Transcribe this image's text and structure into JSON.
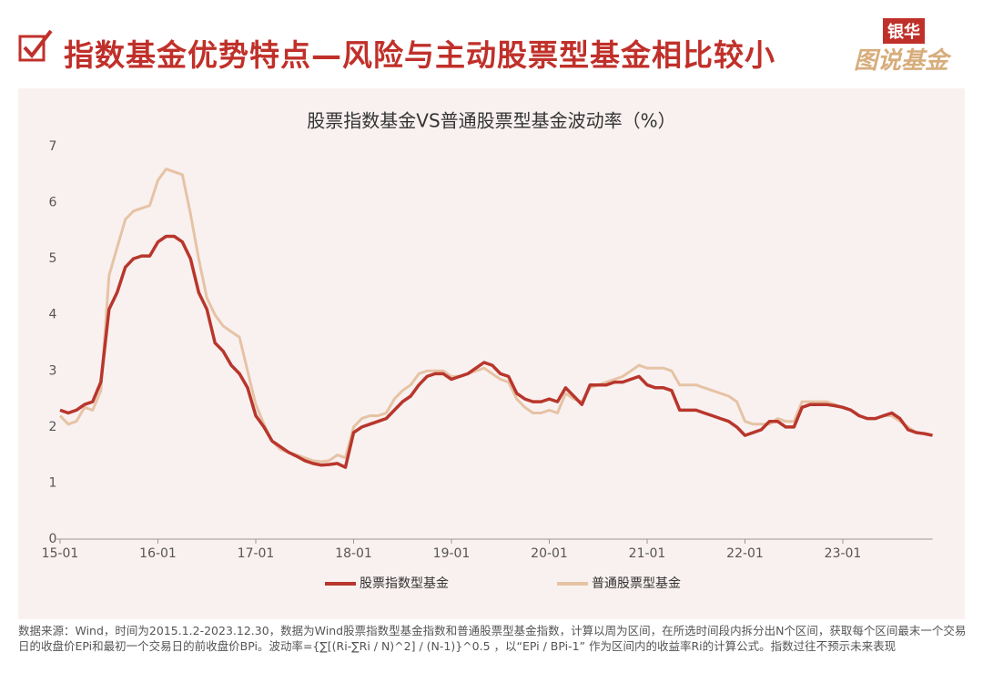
{
  "header": {
    "title": "指数基金优势特点—风险与主动股票型基金相比较小",
    "logo_top": "银华",
    "logo_bottom": "图说基金"
  },
  "chart_data": {
    "type": "line",
    "title": "股票指数基金VS普通股票型基金波动率（%）",
    "x": [
      "15-01",
      "15-02",
      "15-03",
      "15-04",
      "15-05",
      "15-06",
      "15-07",
      "15-08",
      "15-09",
      "15-10",
      "15-11",
      "15-12",
      "16-01",
      "16-02",
      "16-03",
      "16-04",
      "16-05",
      "16-06",
      "16-07",
      "16-08",
      "16-09",
      "16-10",
      "16-11",
      "16-12",
      "17-01",
      "17-02",
      "17-03",
      "17-04",
      "17-05",
      "17-06",
      "17-07",
      "17-08",
      "17-09",
      "17-10",
      "17-11",
      "17-12",
      "18-01",
      "18-02",
      "18-03",
      "18-04",
      "18-05",
      "18-06",
      "18-07",
      "18-08",
      "18-09",
      "18-10",
      "18-11",
      "18-12",
      "19-01",
      "19-02",
      "19-03",
      "19-04",
      "19-05",
      "19-06",
      "19-07",
      "19-08",
      "19-09",
      "19-10",
      "19-11",
      "19-12",
      "20-01",
      "20-02",
      "20-03",
      "20-04",
      "20-05",
      "20-06",
      "20-07",
      "20-08",
      "20-09",
      "20-10",
      "20-11",
      "20-12",
      "21-01",
      "21-02",
      "21-03",
      "21-04",
      "21-05",
      "21-06",
      "21-07",
      "21-08",
      "21-09",
      "21-10",
      "21-11",
      "21-12",
      "22-01",
      "22-02",
      "22-03",
      "22-04",
      "22-05",
      "22-06",
      "22-07",
      "22-08",
      "22-09",
      "22-10",
      "22-11",
      "22-12",
      "23-01",
      "23-02",
      "23-03",
      "23-04",
      "23-05",
      "23-06",
      "23-07",
      "23-08",
      "23-09",
      "23-10",
      "23-11",
      "23-12"
    ],
    "series": [
      {
        "name": "股票指数型基金",
        "color": "#b8362c",
        "values": [
          2.3,
          2.25,
          2.3,
          2.4,
          2.45,
          2.8,
          4.1,
          4.4,
          4.85,
          5.0,
          5.05,
          5.05,
          5.3,
          5.4,
          5.4,
          5.3,
          5.0,
          4.4,
          4.1,
          3.5,
          3.35,
          3.1,
          2.95,
          2.7,
          2.2,
          2.0,
          1.75,
          1.65,
          1.55,
          1.48,
          1.4,
          1.35,
          1.32,
          1.33,
          1.35,
          1.28,
          1.9,
          2.0,
          2.05,
          2.1,
          2.15,
          2.3,
          2.45,
          2.55,
          2.75,
          2.9,
          2.95,
          2.95,
          2.85,
          2.9,
          2.95,
          3.05,
          3.15,
          3.1,
          2.95,
          2.9,
          2.6,
          2.5,
          2.45,
          2.45,
          2.5,
          2.45,
          2.7,
          2.55,
          2.4,
          2.75,
          2.75,
          2.75,
          2.8,
          2.8,
          2.85,
          2.9,
          2.75,
          2.7,
          2.7,
          2.65,
          2.3,
          2.3,
          2.3,
          2.25,
          2.2,
          2.15,
          2.1,
          2.0,
          1.85,
          1.9,
          1.95,
          2.1,
          2.1,
          2.0,
          2.0,
          2.35,
          2.4,
          2.4,
          2.4,
          2.38,
          2.35,
          2.3,
          2.2,
          2.15,
          2.15,
          2.2,
          2.25,
          2.15,
          1.95,
          1.9,
          1.88,
          1.85
        ]
      },
      {
        "name": "普通股票型基金",
        "color": "#e6c3a5",
        "values": [
          2.2,
          2.05,
          2.1,
          2.35,
          2.3,
          2.65,
          4.7,
          5.2,
          5.7,
          5.85,
          5.9,
          5.95,
          6.4,
          6.6,
          6.55,
          6.5,
          5.8,
          5.0,
          4.3,
          4.0,
          3.8,
          3.7,
          3.6,
          3.0,
          2.4,
          2.05,
          1.75,
          1.6,
          1.55,
          1.5,
          1.45,
          1.4,
          1.38,
          1.4,
          1.5,
          1.45,
          2.0,
          2.15,
          2.2,
          2.2,
          2.25,
          2.5,
          2.65,
          2.75,
          2.95,
          3.0,
          3.0,
          3.0,
          2.9,
          2.9,
          2.95,
          3.0,
          3.05,
          2.95,
          2.85,
          2.8,
          2.5,
          2.35,
          2.25,
          2.25,
          2.3,
          2.25,
          2.6,
          2.5,
          2.45,
          2.7,
          2.75,
          2.8,
          2.85,
          2.9,
          3.0,
          3.1,
          3.05,
          3.05,
          3.05,
          3.0,
          2.75,
          2.75,
          2.75,
          2.7,
          2.65,
          2.6,
          2.55,
          2.45,
          2.1,
          2.05,
          2.05,
          2.05,
          2.15,
          2.1,
          2.1,
          2.45,
          2.45,
          2.45,
          2.45,
          2.4,
          2.35,
          2.3,
          2.2,
          2.15,
          2.15,
          2.2,
          2.2,
          2.1,
          2.0,
          1.9,
          1.88,
          1.85
        ]
      }
    ],
    "xticks": [
      "15-01",
      "16-01",
      "17-01",
      "18-01",
      "19-01",
      "20-01",
      "21-01",
      "22-01",
      "23-01"
    ],
    "ylim": [
      0,
      7
    ],
    "yticks": [
      0,
      1,
      2,
      3,
      4,
      5,
      6,
      7
    ],
    "grid": false,
    "legend": "bottom"
  },
  "footer": {
    "note": "数据来源：Wind，时间为2015.1.2-2023.12.30，数据为Wind股票指数型基金指数和普通股票型基金指数，计算以周为区间，在所选时间段内拆分出N个区间，获取每个区间最末一个交易日的收盘价EPi和最初一个交易日的前收盘价BPi。波动率={∑[(Ri-∑Ri / N)^2] / (N-1)}^0.5 ，以“EPi / BPi-1” 作为区间内的收益率Ri的计算公式。指数过往不预示未来表现"
  }
}
